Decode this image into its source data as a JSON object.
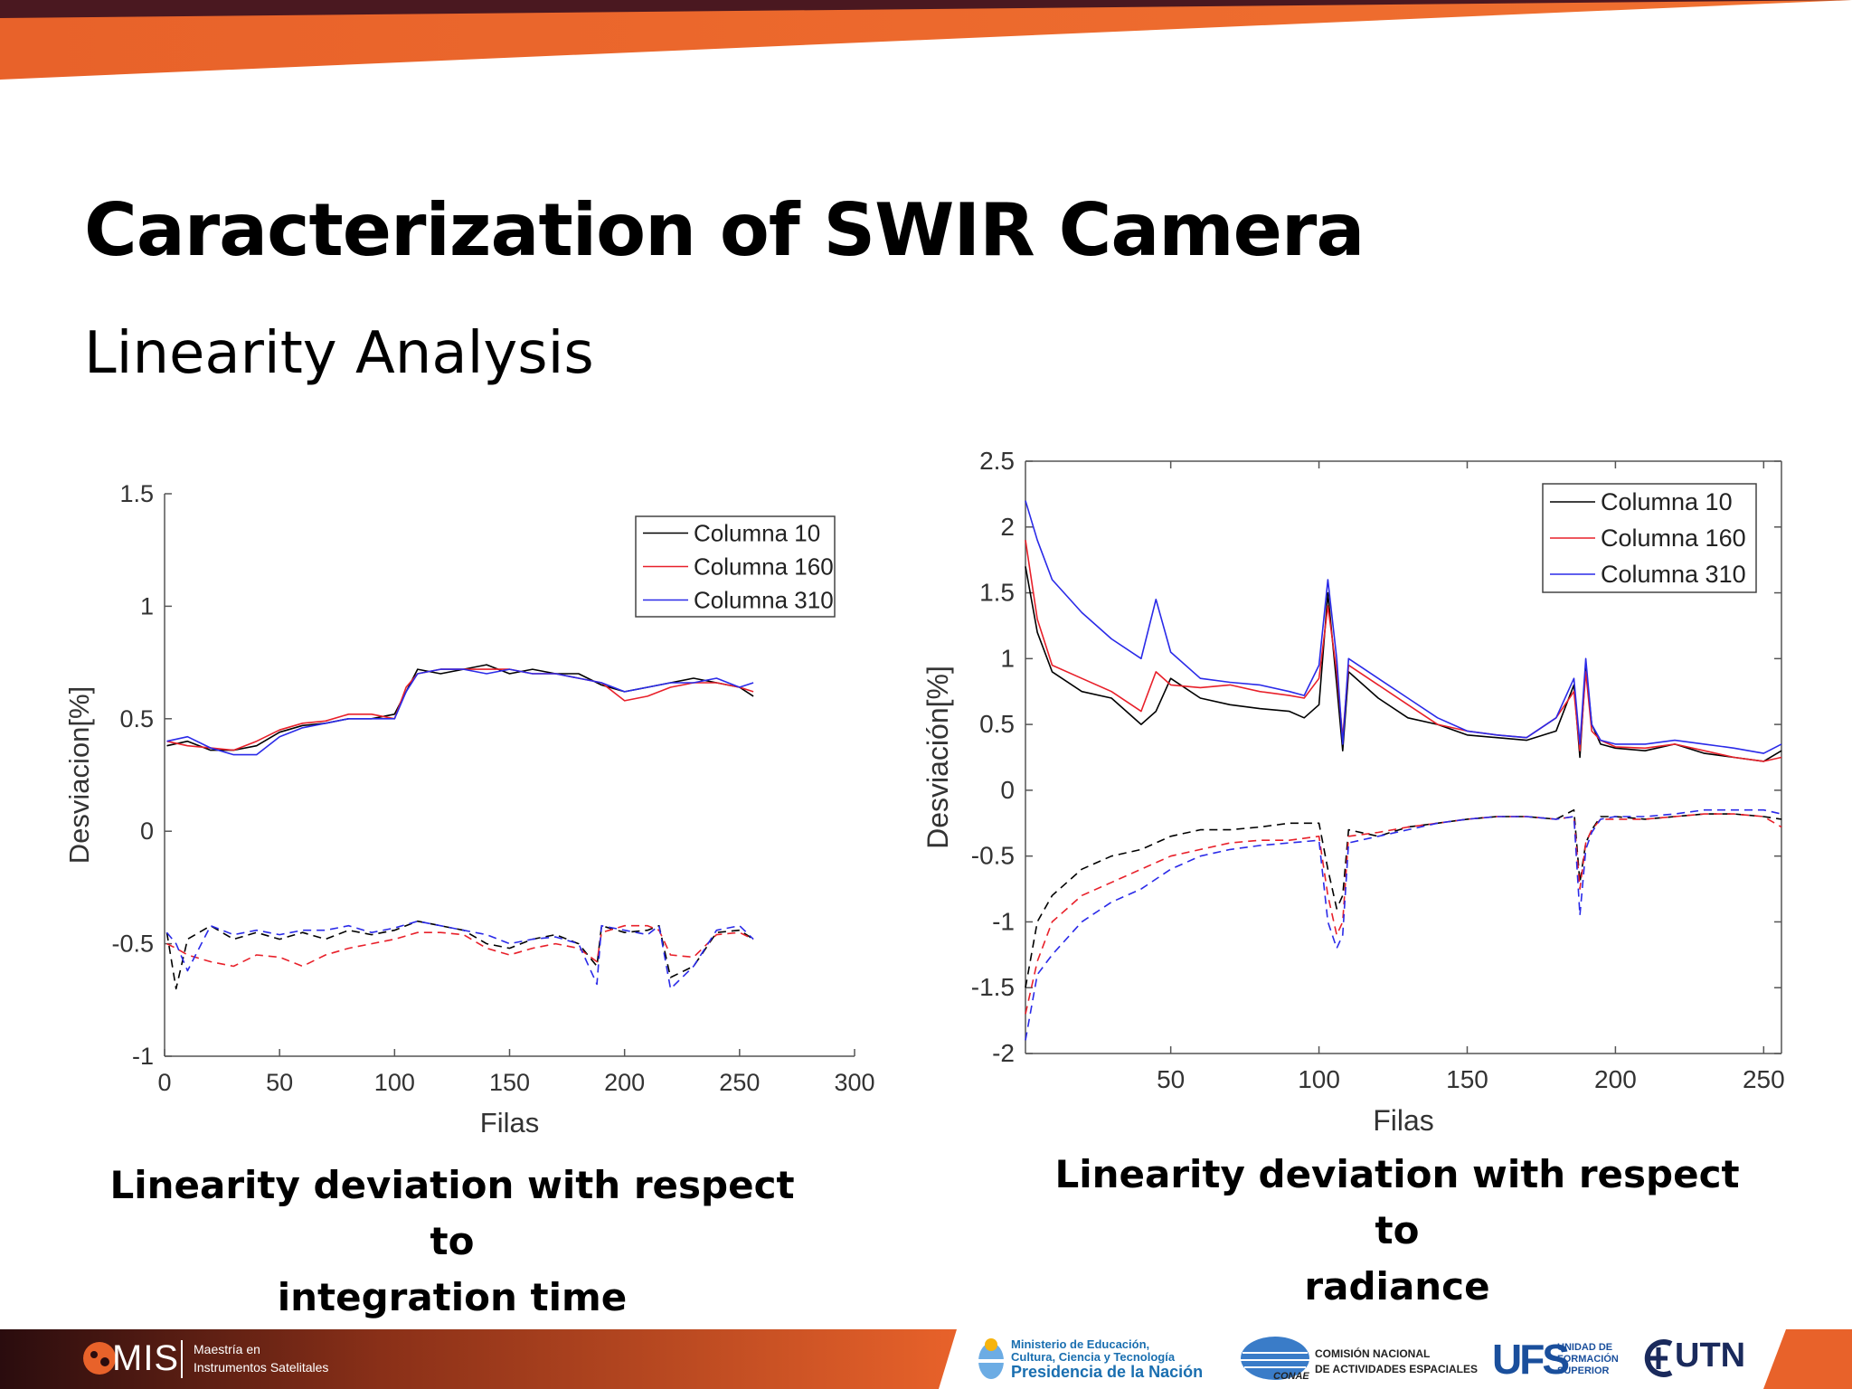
{
  "slide": {
    "title": "Caracterization of SWIR Camera",
    "subtitle": "Linearity Analysis",
    "caption_left_line1": "Linearity deviation with respect to",
    "caption_left_line2": "integration time",
    "caption_right_line1": "Linearity deviation with respect to",
    "caption_right_line2": "radiance"
  },
  "colors": {
    "accent_orange": "#e8622a",
    "accent_dark": "#5a1a20",
    "series": [
      "#000000",
      "#e8202a",
      "#2a2ae8"
    ]
  },
  "footer": {
    "mis_logo": "MIS",
    "mis_line1": "Maestría en",
    "mis_line2": "Instrumentos Satelitales",
    "min_line1": "Ministerio de Educación,",
    "min_line2": "Cultura, Ciencia y Tecnología",
    "min_line3": "Presidencia de la Nación",
    "conae_line1": "COMISIÓN NACIONAL",
    "conae_line2": "DE ACTIVIDADES ESPACIALES",
    "conae_mark": "CONAE",
    "ufs_logo": "UFS",
    "ufs_line1": "UNIDAD DE",
    "ufs_line2": "FORMACIÓN",
    "ufs_line3": "SUPERIOR",
    "utn_logo": "UTN"
  },
  "chart_data": [
    {
      "type": "line",
      "xlabel": "Filas",
      "ylabel": "Desviacion[%]",
      "xlim": [
        0,
        300
      ],
      "ylim": [
        -1,
        1.5
      ],
      "xticks": [
        0,
        50,
        100,
        150,
        200,
        250,
        300
      ],
      "yticks": [
        -1,
        -0.5,
        0,
        0.5,
        1,
        1.5
      ],
      "xtick_labels": [
        "0",
        "50",
        "100",
        "150",
        "200",
        "250",
        "300"
      ],
      "ytick_labels": [
        "-1",
        "-0.5",
        "0",
        "0.5",
        "1",
        "1.5"
      ],
      "legend": "top-right",
      "box": false,
      "series": [
        {
          "name": "Columna 10",
          "color": "#000000",
          "dash": false,
          "x": [
            1,
            10,
            20,
            30,
            40,
            50,
            60,
            70,
            80,
            90,
            100,
            105,
            110,
            120,
            130,
            140,
            150,
            160,
            170,
            180,
            190,
            200,
            210,
            220,
            230,
            240,
            250,
            256
          ],
          "y": [
            0.38,
            0.4,
            0.36,
            0.36,
            0.38,
            0.44,
            0.47,
            0.48,
            0.5,
            0.5,
            0.52,
            0.62,
            0.72,
            0.7,
            0.72,
            0.74,
            0.7,
            0.72,
            0.7,
            0.7,
            0.65,
            0.62,
            0.64,
            0.66,
            0.68,
            0.66,
            0.64,
            0.6
          ]
        },
        {
          "name": "Columna 160",
          "color": "#e8202a",
          "dash": false,
          "x": [
            1,
            10,
            20,
            30,
            40,
            50,
            60,
            70,
            80,
            90,
            100,
            105,
            110,
            120,
            130,
            140,
            150,
            160,
            170,
            180,
            190,
            200,
            210,
            220,
            230,
            240,
            250,
            256
          ],
          "y": [
            0.4,
            0.38,
            0.37,
            0.36,
            0.4,
            0.45,
            0.48,
            0.49,
            0.52,
            0.52,
            0.5,
            0.64,
            0.7,
            0.72,
            0.72,
            0.72,
            0.72,
            0.7,
            0.7,
            0.68,
            0.66,
            0.58,
            0.6,
            0.64,
            0.66,
            0.66,
            0.64,
            0.62
          ]
        },
        {
          "name": "Columna 310",
          "color": "#2a2ae8",
          "dash": false,
          "x": [
            1,
            10,
            20,
            30,
            40,
            50,
            60,
            70,
            80,
            90,
            100,
            105,
            110,
            120,
            130,
            140,
            150,
            160,
            170,
            180,
            190,
            200,
            210,
            220,
            230,
            240,
            250,
            256
          ],
          "y": [
            0.4,
            0.42,
            0.37,
            0.34,
            0.34,
            0.42,
            0.46,
            0.48,
            0.5,
            0.5,
            0.5,
            0.62,
            0.7,
            0.72,
            0.72,
            0.7,
            0.72,
            0.7,
            0.7,
            0.68,
            0.66,
            0.62,
            0.64,
            0.66,
            0.66,
            0.68,
            0.64,
            0.66
          ]
        },
        {
          "name": "",
          "color": "#000000",
          "dash": true,
          "x": [
            1,
            5,
            10,
            20,
            30,
            40,
            50,
            60,
            70,
            80,
            90,
            100,
            110,
            120,
            130,
            140,
            150,
            160,
            170,
            180,
            188,
            190,
            200,
            210,
            215,
            220,
            230,
            240,
            250,
            256
          ],
          "y": [
            -0.45,
            -0.7,
            -0.48,
            -0.42,
            -0.48,
            -0.45,
            -0.48,
            -0.45,
            -0.48,
            -0.44,
            -0.46,
            -0.44,
            -0.4,
            -0.42,
            -0.44,
            -0.5,
            -0.52,
            -0.48,
            -0.46,
            -0.5,
            -0.6,
            -0.42,
            -0.45,
            -0.44,
            -0.42,
            -0.65,
            -0.6,
            -0.45,
            -0.44,
            -0.48
          ]
        },
        {
          "name": "",
          "color": "#e8202a",
          "dash": true,
          "x": [
            1,
            5,
            10,
            20,
            30,
            40,
            50,
            60,
            70,
            80,
            90,
            100,
            110,
            120,
            130,
            140,
            150,
            160,
            170,
            180,
            188,
            190,
            200,
            210,
            215,
            220,
            230,
            240,
            250,
            256
          ],
          "y": [
            -0.5,
            -0.52,
            -0.55,
            -0.58,
            -0.6,
            -0.55,
            -0.56,
            -0.6,
            -0.55,
            -0.52,
            -0.5,
            -0.48,
            -0.45,
            -0.45,
            -0.46,
            -0.52,
            -0.55,
            -0.52,
            -0.5,
            -0.52,
            -0.58,
            -0.45,
            -0.42,
            -0.42,
            -0.44,
            -0.55,
            -0.56,
            -0.46,
            -0.45,
            -0.48
          ]
        },
        {
          "name": "",
          "color": "#2a2ae8",
          "dash": true,
          "x": [
            1,
            5,
            10,
            20,
            30,
            40,
            50,
            60,
            70,
            80,
            90,
            100,
            110,
            120,
            130,
            140,
            150,
            160,
            170,
            180,
            188,
            190,
            200,
            210,
            215,
            220,
            230,
            240,
            250,
            256
          ],
          "y": [
            -0.45,
            -0.5,
            -0.62,
            -0.42,
            -0.46,
            -0.44,
            -0.46,
            -0.44,
            -0.44,
            -0.42,
            -0.45,
            -0.43,
            -0.4,
            -0.42,
            -0.44,
            -0.46,
            -0.5,
            -0.48,
            -0.47,
            -0.5,
            -0.68,
            -0.42,
            -0.44,
            -0.46,
            -0.42,
            -0.7,
            -0.6,
            -0.44,
            -0.42,
            -0.48
          ]
        }
      ]
    },
    {
      "type": "line",
      "xlabel": "Filas",
      "ylabel": "Desviación[%]",
      "xlim": [
        1,
        256
      ],
      "ylim": [
        -2,
        2.5
      ],
      "xticks": [
        50,
        100,
        150,
        200,
        250
      ],
      "yticks": [
        -2,
        -1.5,
        -1,
        -0.5,
        0,
        0.5,
        1,
        1.5,
        2,
        2.5
      ],
      "xtick_labels": [
        "50",
        "100",
        "150",
        "200",
        "250"
      ],
      "ytick_labels": [
        "-2",
        "-1.5",
        "-1",
        "-0.5",
        "0",
        "0.5",
        "1",
        "1.5",
        "2",
        "2.5"
      ],
      "legend": "top-right",
      "box": true,
      "series": [
        {
          "name": "Columna 10",
          "color": "#000000",
          "dash": false,
          "x": [
            1,
            5,
            10,
            20,
            30,
            40,
            45,
            50,
            60,
            70,
            80,
            90,
            95,
            100,
            103,
            106,
            108,
            110,
            120,
            130,
            140,
            150,
            160,
            170,
            180,
            186,
            188,
            190,
            192,
            195,
            200,
            210,
            220,
            230,
            240,
            250,
            256
          ],
          "y": [
            1.7,
            1.2,
            0.9,
            0.75,
            0.7,
            0.5,
            0.6,
            0.85,
            0.7,
            0.65,
            0.62,
            0.6,
            0.55,
            0.65,
            1.5,
            0.8,
            0.3,
            0.9,
            0.7,
            0.55,
            0.5,
            0.42,
            0.4,
            0.38,
            0.45,
            0.8,
            0.25,
            0.95,
            0.5,
            0.35,
            0.32,
            0.3,
            0.35,
            0.28,
            0.25,
            0.22,
            0.3
          ]
        },
        {
          "name": "Columna 160",
          "color": "#e8202a",
          "dash": false,
          "x": [
            1,
            5,
            10,
            20,
            30,
            40,
            45,
            50,
            60,
            70,
            80,
            90,
            95,
            100,
            103,
            106,
            108,
            110,
            120,
            130,
            140,
            150,
            160,
            170,
            180,
            186,
            188,
            190,
            192,
            195,
            200,
            210,
            220,
            230,
            240,
            250,
            256
          ],
          "y": [
            1.9,
            1.3,
            0.95,
            0.85,
            0.75,
            0.6,
            0.9,
            0.8,
            0.78,
            0.8,
            0.75,
            0.72,
            0.7,
            0.85,
            1.4,
            0.9,
            0.4,
            0.95,
            0.8,
            0.65,
            0.5,
            0.45,
            0.42,
            0.4,
            0.55,
            0.75,
            0.3,
            0.9,
            0.45,
            0.38,
            0.33,
            0.32,
            0.35,
            0.3,
            0.25,
            0.22,
            0.25
          ]
        },
        {
          "name": "Columna 310",
          "color": "#2a2ae8",
          "dash": false,
          "x": [
            1,
            5,
            10,
            20,
            30,
            40,
            45,
            50,
            60,
            70,
            80,
            90,
            95,
            100,
            103,
            106,
            108,
            110,
            120,
            130,
            140,
            150,
            160,
            170,
            180,
            186,
            188,
            190,
            192,
            195,
            200,
            210,
            220,
            230,
            240,
            250,
            256
          ],
          "y": [
            2.2,
            1.9,
            1.6,
            1.35,
            1.15,
            1.0,
            1.45,
            1.05,
            0.85,
            0.82,
            0.8,
            0.75,
            0.72,
            0.95,
            1.6,
            1.0,
            0.35,
            1.0,
            0.85,
            0.7,
            0.55,
            0.45,
            0.42,
            0.4,
            0.55,
            0.85,
            0.35,
            1.0,
            0.5,
            0.38,
            0.35,
            0.35,
            0.38,
            0.35,
            0.32,
            0.28,
            0.35
          ]
        },
        {
          "name": "",
          "color": "#000000",
          "dash": true,
          "x": [
            1,
            5,
            10,
            20,
            30,
            40,
            50,
            60,
            70,
            80,
            90,
            100,
            103,
            106,
            108,
            110,
            120,
            130,
            140,
            150,
            160,
            170,
            180,
            186,
            188,
            190,
            192,
            195,
            200,
            210,
            220,
            230,
            240,
            250,
            256
          ],
          "y": [
            -1.5,
            -1.0,
            -0.8,
            -0.6,
            -0.5,
            -0.45,
            -0.35,
            -0.3,
            -0.3,
            -0.28,
            -0.25,
            -0.25,
            -0.6,
            -0.9,
            -0.8,
            -0.3,
            -0.35,
            -0.28,
            -0.25,
            -0.22,
            -0.2,
            -0.2,
            -0.22,
            -0.15,
            -0.7,
            -0.4,
            -0.3,
            -0.2,
            -0.2,
            -0.22,
            -0.2,
            -0.18,
            -0.18,
            -0.2,
            -0.22
          ]
        },
        {
          "name": "",
          "color": "#e8202a",
          "dash": true,
          "x": [
            1,
            5,
            10,
            20,
            30,
            40,
            50,
            60,
            70,
            80,
            90,
            100,
            103,
            106,
            108,
            110,
            120,
            130,
            140,
            150,
            160,
            170,
            180,
            186,
            188,
            190,
            192,
            195,
            200,
            210,
            220,
            230,
            240,
            250,
            256
          ],
          "y": [
            -1.7,
            -1.3,
            -1.0,
            -0.8,
            -0.7,
            -0.6,
            -0.5,
            -0.45,
            -0.4,
            -0.38,
            -0.38,
            -0.35,
            -0.8,
            -1.1,
            -1.0,
            -0.35,
            -0.32,
            -0.28,
            -0.25,
            -0.22,
            -0.2,
            -0.2,
            -0.22,
            -0.2,
            -0.75,
            -0.4,
            -0.3,
            -0.22,
            -0.22,
            -0.22,
            -0.2,
            -0.18,
            -0.18,
            -0.2,
            -0.28
          ]
        },
        {
          "name": "",
          "color": "#2a2ae8",
          "dash": true,
          "x": [
            1,
            5,
            10,
            20,
            30,
            40,
            50,
            60,
            70,
            80,
            90,
            100,
            103,
            106,
            108,
            110,
            120,
            130,
            140,
            150,
            160,
            170,
            180,
            186,
            188,
            190,
            192,
            195,
            200,
            210,
            220,
            230,
            240,
            250,
            256
          ],
          "y": [
            -1.9,
            -1.4,
            -1.25,
            -1.0,
            -0.85,
            -0.75,
            -0.6,
            -0.5,
            -0.45,
            -0.42,
            -0.4,
            -0.38,
            -1.0,
            -1.2,
            -1.1,
            -0.4,
            -0.35,
            -0.3,
            -0.25,
            -0.22,
            -0.2,
            -0.2,
            -0.22,
            -0.2,
            -0.95,
            -0.45,
            -0.32,
            -0.22,
            -0.2,
            -0.2,
            -0.18,
            -0.15,
            -0.15,
            -0.15,
            -0.18
          ]
        }
      ]
    }
  ]
}
